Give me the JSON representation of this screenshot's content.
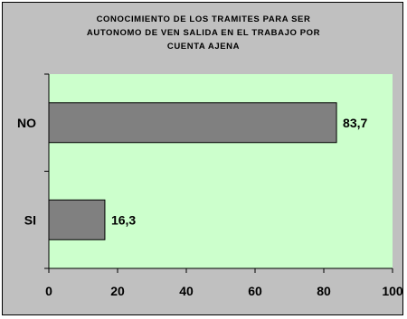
{
  "chart_data": {
    "type": "bar",
    "orientation": "horizontal",
    "title": "CONOCIMIENTO DE LOS TRAMITES PARA SER AUTONOMO DE VEN SALIDA EN EL TRABAJO POR CUENTA AJENA",
    "title_lines": [
      "CONOCIMIENTO DE LOS TRAMITES PARA SER",
      "AUTONOMO DE VEN SALIDA EN EL TRABAJO POR",
      "CUENTA AJENA"
    ],
    "categories": [
      "NO",
      "SI"
    ],
    "values": [
      83.7,
      16.3
    ],
    "data_labels": [
      "83,7",
      "16,3"
    ],
    "xlim": [
      0,
      100
    ],
    "x_ticks": [
      0,
      20,
      40,
      60,
      80,
      100
    ],
    "x_tick_labels": [
      "0",
      "20",
      "40",
      "60",
      "80",
      "100"
    ],
    "grid": false,
    "legend": "none",
    "colors": {
      "plot_background": "#ccffcc",
      "chart_background": "#c0c0c0",
      "bar_fill": "#808080",
      "bar_edge": "#000000"
    }
  }
}
